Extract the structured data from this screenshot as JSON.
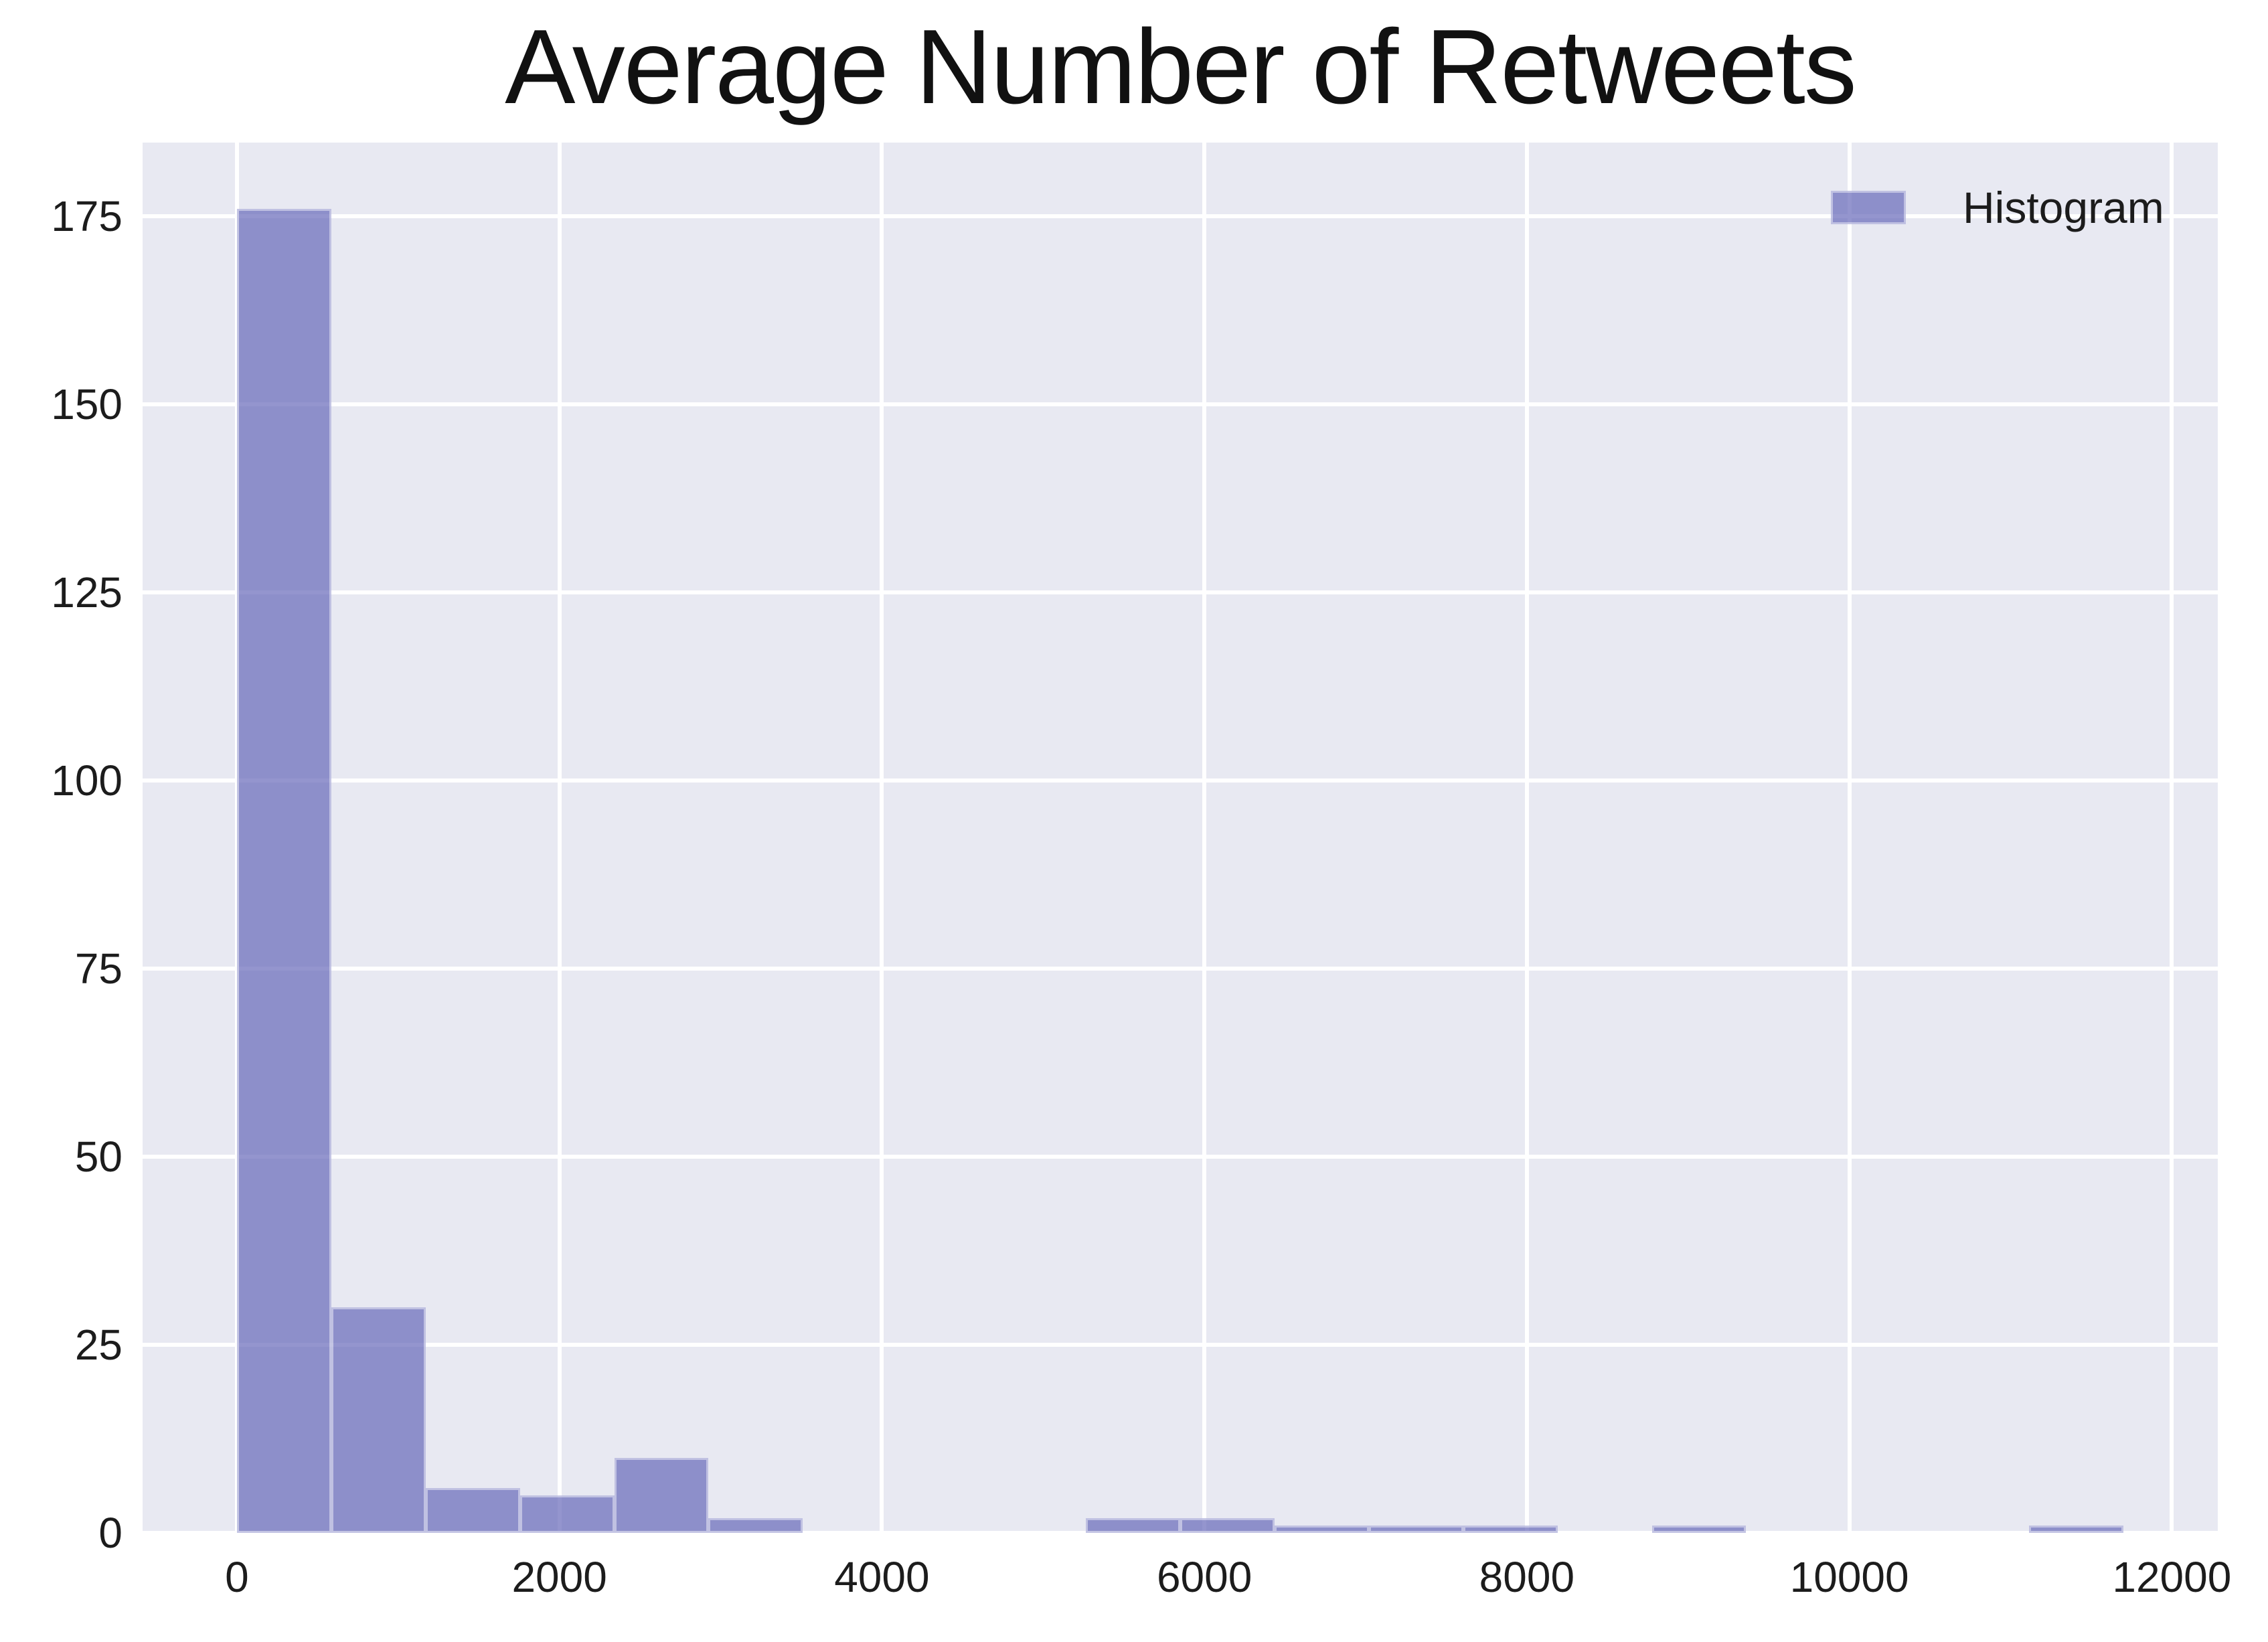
{
  "title": "Average Number of Retweets",
  "legend": {
    "label": "Histogram",
    "position": "upper right",
    "swatch_color": "#8d8fca"
  },
  "colors": {
    "figure_bg": "#ffffff",
    "axes_bg": "#e8e9f2",
    "grid": "#ffffff",
    "bar_fill": "#8d8fca",
    "bar_fill_rgba": "rgba(102,104,185,0.70)",
    "bar_edge": "rgba(255,255,255,0.45)",
    "text": "#1c1c1c"
  },
  "chart_data": {
    "type": "bar",
    "subtype": "histogram",
    "title": "Average Number of Retweets",
    "xlabel": "",
    "ylabel": "",
    "bin_start": 0,
    "bin_width": 585,
    "bin_count": 20,
    "counts": [
      176,
      30,
      6,
      5,
      10,
      2,
      0,
      0,
      0,
      2,
      2,
      1,
      1,
      1,
      0,
      1,
      0,
      0,
      0,
      1
    ],
    "xlim": [
      -585,
      12285
    ],
    "ylim": [
      0,
      184.8
    ],
    "x_ticks": [
      0,
      2000,
      4000,
      6000,
      8000,
      10000,
      12000
    ],
    "y_ticks": [
      0,
      25,
      50,
      75,
      100,
      125,
      150,
      175
    ],
    "grid": true,
    "legend_entries": [
      "Histogram"
    ],
    "legend_position": "upper right"
  }
}
